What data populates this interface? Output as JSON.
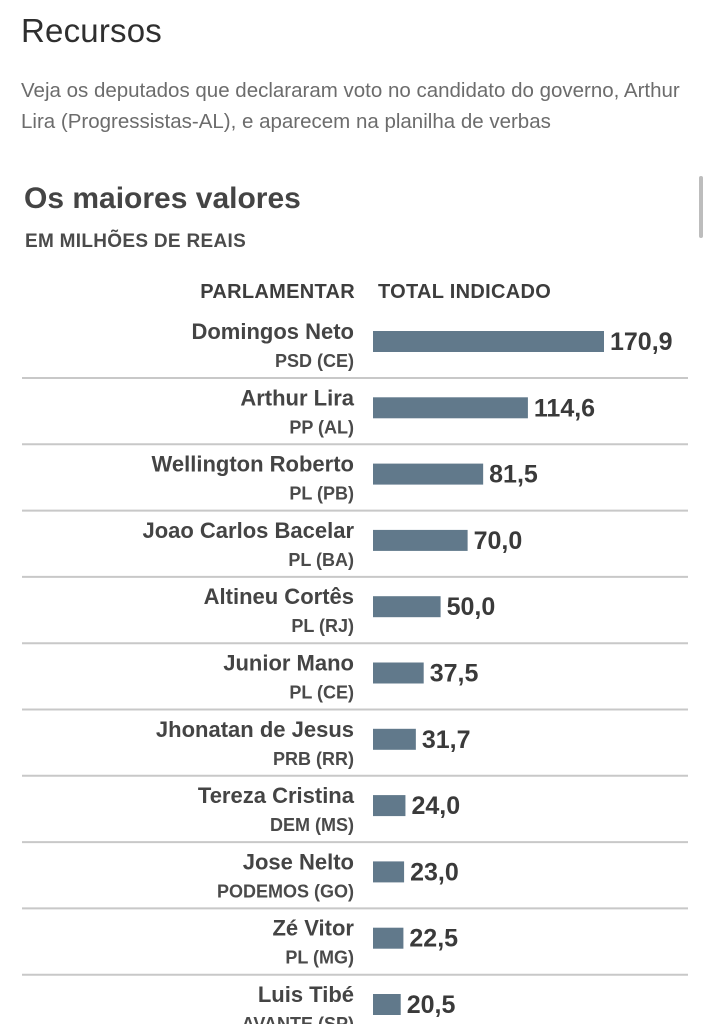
{
  "section": {
    "title": "Recursos",
    "intro": "Veja os deputados que declararam voto no candidato do governo, Arthur Lira (Progressistas-AL), e aparecem na planilha de verbas"
  },
  "chart_data": {
    "type": "bar",
    "orientation": "horizontal",
    "title": "Os maiores valores",
    "subtitle": "EM MILHÕES DE REAIS",
    "column_headers": {
      "label": "PARLAMENTAR",
      "value": "TOTAL INDICADO"
    },
    "xlim": [
      0,
      170.9
    ],
    "grid": false,
    "categories": [
      "Domingos Neto",
      "Arthur Lira",
      "Wellington Roberto",
      "Joao Carlos Bacelar",
      "Altineu Cortês",
      "Junior Mano",
      "Jhonatan de Jesus",
      "Tereza Cristina",
      "Jose Nelto",
      "Zé Vitor",
      "Luis Tibé"
    ],
    "parties": [
      "PSD (CE)",
      "PP (AL)",
      "PL (PB)",
      "PL (BA)",
      "PL (RJ)",
      "PL (CE)",
      "PRB (RR)",
      "DEM (MS)",
      "PODEMOS (GO)",
      "PL (MG)",
      "AVANTE (SP)"
    ],
    "values": [
      170.9,
      114.6,
      81.5,
      70.0,
      50.0,
      37.5,
      31.7,
      24.0,
      23.0,
      22.5,
      20.5
    ],
    "value_labels": [
      "170,9",
      "114,6",
      "81,5",
      "70,0",
      "50,0",
      "37,5",
      "31,7",
      "24,0",
      "23,0",
      "22,5",
      "20,5"
    ],
    "bar_color": "#61798b"
  }
}
